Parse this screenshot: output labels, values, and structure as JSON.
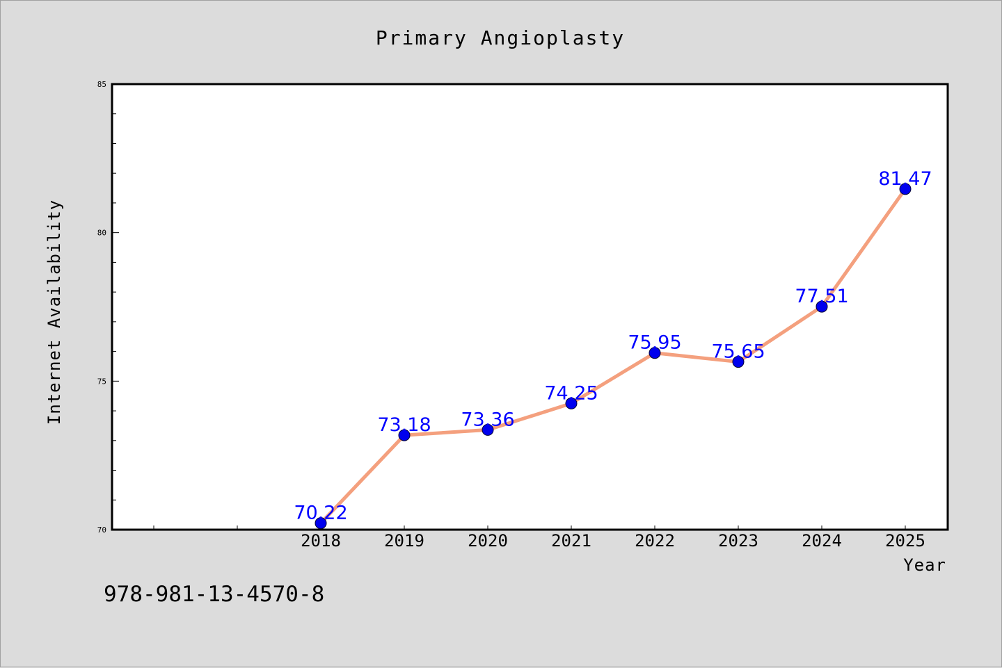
{
  "chart_data": {
    "type": "line",
    "title": "Primary Angioplasty",
    "xlabel": "Year",
    "ylabel": "Internet Availability",
    "categories": [
      "2018",
      "2019",
      "2020",
      "2021",
      "2022",
      "2023",
      "2024",
      "2025"
    ],
    "values": [
      70.22,
      73.18,
      73.36,
      74.25,
      75.95,
      75.65,
      77.51,
      81.47
    ],
    "data_labels": [
      "70.22",
      "73.18",
      "73.36",
      "74.25",
      "75.95",
      "75.65",
      "77.51",
      "81.47"
    ],
    "ylim": [
      70,
      85
    ],
    "yticks": [
      "70",
      "75",
      "80",
      "85"
    ],
    "grid": false,
    "legend": false,
    "colors": {
      "line": "#f4a07e",
      "marker": "#0000ee",
      "label": "#0000ff",
      "plot_bg": "#ffffff",
      "page_bg": "#dcdcdc"
    }
  },
  "footer_note": "978-981-13-4570-8"
}
